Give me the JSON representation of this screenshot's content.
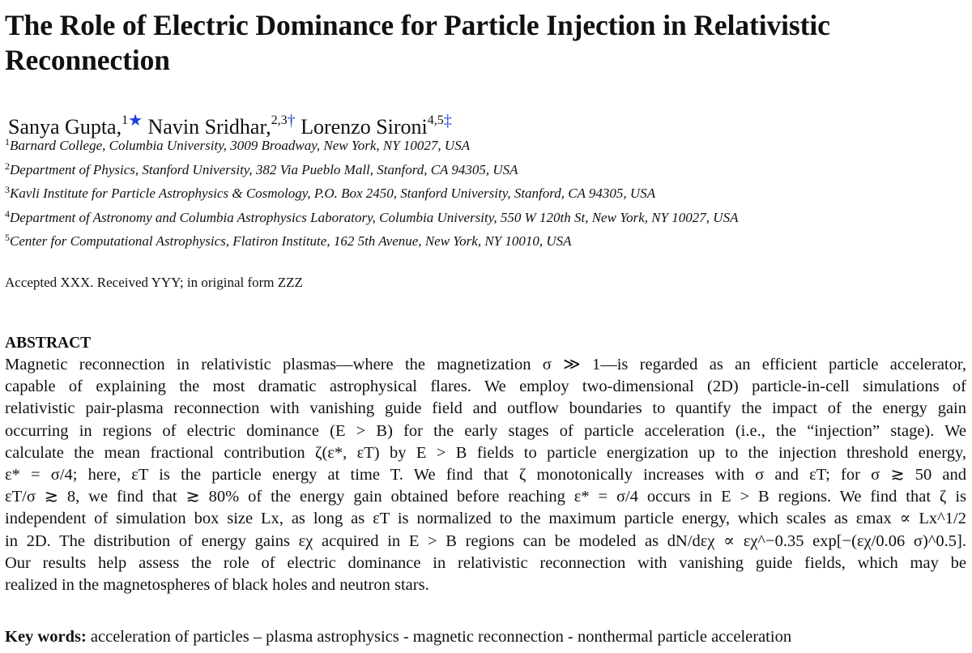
{
  "title": "The Role of Electric Dominance for Particle Injection in Relativistic Reconnection",
  "authors": [
    {
      "name": "Sanya Gupta,",
      "sup": "1",
      "symbol": "★"
    },
    {
      "name": "Navin Sridhar,",
      "sup": "2,3",
      "symbol": "†"
    },
    {
      "name": "Lorenzo Sironi",
      "sup": "4,5",
      "symbol": "‡"
    }
  ],
  "affiliations": [
    {
      "num": "1",
      "text": "Barnard College, Columbia University, 3009 Broadway, New York, NY 10027, USA"
    },
    {
      "num": "2",
      "text": "Department of Physics, Stanford University, 382 Via Pueblo Mall, Stanford, CA 94305, USA"
    },
    {
      "num": "3",
      "text": "Kavli Institute for Particle Astrophysics & Cosmology, P.O. Box 2450, Stanford University, Stanford, CA 94305, USA"
    },
    {
      "num": "4",
      "text": "Department of Astronomy and Columbia Astrophysics Laboratory, Columbia University, 550 W 120th St, New York, NY 10027, USA"
    },
    {
      "num": "5",
      "text": "Center for Computational Astrophysics, Flatiron Institute, 162 5th Avenue, New York, NY 10010, USA"
    }
  ],
  "accepted": "Accepted XXX. Received YYY; in original form ZZZ",
  "abstract_heading": "ABSTRACT",
  "abstract_lines": [
    "Magnetic reconnection in relativistic plasmas—where the magnetization σ ≫ 1—is regarded as an efficient particle accelerator,",
    "capable of explaining the most dramatic astrophysical flares. We employ two-dimensional (2D) particle-in-cell simulations of",
    "relativistic pair-plasma reconnection with vanishing guide field and outflow boundaries to quantify the impact of the energy gain",
    "occurring in regions of electric dominance (E > B) for the early stages of particle acceleration (i.e., the “injection” stage). We",
    "calculate the mean fractional contribution ζ(ε*, εT) by E > B fields to particle energization up to the injection threshold energy,",
    "ε* = σ/4; here, εT is the particle energy at time T. We find that ζ monotonically increases with σ and εT; for σ ≳ 50 and",
    "εT/σ ≳ 8, we find that ≳ 80% of the energy gain obtained before reaching ε* = σ/4 occurs in E > B regions. We find that ζ is",
    "independent of simulation box size Lx, as long as εT is normalized to the maximum particle energy, which scales as εmax ∝ Lx^1/2",
    "in 2D. The distribution of energy gains εχ acquired in E > B regions can be modeled as dN/dεχ ∝ εχ^−0.35 exp[−(εχ/0.06 σ)^0.5].",
    "Our results help assess the role of electric dominance in relativistic reconnection with vanishing guide fields, which may be",
    "realized in the magnetospheres of black holes and neutron stars."
  ],
  "keywords_label": "Key words:",
  "keywords_text": "acceleration of particles – plasma astrophysics - magnetic reconnection - nonthermal particle acceleration",
  "colors": {
    "symbol": "#1a3de0",
    "text": "#111111"
  }
}
